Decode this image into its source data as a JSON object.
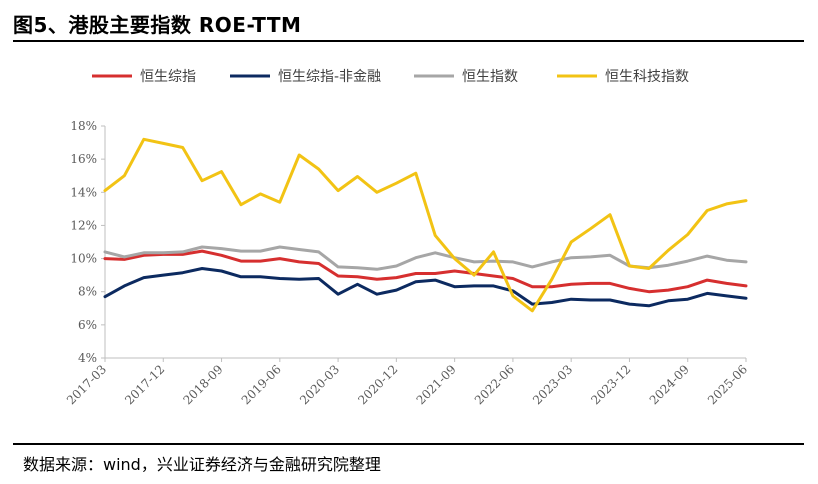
{
  "header": {
    "title": "图5、港股主要指数 ROE-TTM"
  },
  "footer": {
    "source": "数据来源：wind，兴业证券经济与金融研究院整理"
  },
  "chart_data": {
    "type": "line",
    "title": "图5、港股主要指数 ROE-TTM",
    "xlabel": "",
    "ylabel": "",
    "ylim": [
      4,
      18
    ],
    "yticks": [
      "4%",
      "6%",
      "8%",
      "10%",
      "12%",
      "14%",
      "16%",
      "18%"
    ],
    "legend_position": "top",
    "grid": false,
    "x": [
      "2017-03",
      "2017-06",
      "2017-09",
      "2017-12",
      "2018-03",
      "2018-06",
      "2018-09",
      "2018-12",
      "2019-03",
      "2019-06",
      "2019-09",
      "2019-12",
      "2020-03",
      "2020-06",
      "2020-09",
      "2020-12",
      "2021-03",
      "2021-06",
      "2021-09",
      "2021-12",
      "2022-03",
      "2022-06",
      "2022-09",
      "2022-12",
      "2023-03",
      "2023-06",
      "2023-09",
      "2023-12",
      "2024-03",
      "2024-06",
      "2024-09",
      "2024-12",
      "2025-03",
      "2025-06"
    ],
    "xtick_labels": [
      "2017-03",
      "2017-12",
      "2018-09",
      "2019-06",
      "2020-03",
      "2020-12",
      "2021-09",
      "2022-06",
      "2023-03",
      "2023-12",
      "2024-09",
      "2025-06"
    ],
    "series": [
      {
        "name": "恒生综指",
        "color": "#d62f2f",
        "values": [
          10.0,
          9.95,
          10.2,
          10.25,
          10.25,
          10.45,
          10.2,
          9.85,
          9.85,
          10.0,
          9.8,
          9.7,
          8.95,
          8.9,
          8.75,
          8.85,
          9.1,
          9.1,
          9.25,
          9.1,
          8.95,
          8.8,
          8.3,
          8.3,
          8.45,
          8.5,
          8.5,
          8.2,
          8.0,
          8.1,
          8.3,
          8.7,
          8.5,
          8.35
        ]
      },
      {
        "name": "恒生综指-非金融",
        "color": "#0c2a60",
        "values": [
          7.7,
          8.35,
          8.85,
          9.0,
          9.15,
          9.4,
          9.25,
          8.9,
          8.9,
          8.8,
          8.75,
          8.8,
          7.85,
          8.45,
          7.85,
          8.1,
          8.6,
          8.7,
          8.3,
          8.35,
          8.35,
          8.05,
          7.25,
          7.35,
          7.55,
          7.5,
          7.5,
          7.25,
          7.15,
          7.45,
          7.55,
          7.9,
          7.75,
          7.6
        ]
      },
      {
        "name": "恒生指数",
        "color": "#a6a6a6",
        "values": [
          10.4,
          10.1,
          10.35,
          10.35,
          10.4,
          10.7,
          10.6,
          10.45,
          10.45,
          10.7,
          10.55,
          10.4,
          9.5,
          9.45,
          9.35,
          9.55,
          10.05,
          10.35,
          10.05,
          9.8,
          9.85,
          9.8,
          9.5,
          9.8,
          10.05,
          10.1,
          10.2,
          9.55,
          9.45,
          9.6,
          9.85,
          10.15,
          9.9,
          9.8
        ]
      },
      {
        "name": "恒生科技指数",
        "color": "#f2c314",
        "values": [
          14.1,
          15.0,
          17.2,
          16.95,
          16.7,
          14.7,
          15.25,
          13.25,
          13.9,
          13.4,
          16.25,
          15.4,
          14.1,
          14.95,
          14.0,
          14.55,
          15.15,
          11.4,
          10.0,
          9.0,
          10.4,
          7.75,
          6.85,
          8.75,
          11.0,
          11.8,
          12.65,
          9.55,
          9.4,
          10.5,
          11.45,
          12.9,
          13.3,
          13.5
        ]
      }
    ]
  }
}
